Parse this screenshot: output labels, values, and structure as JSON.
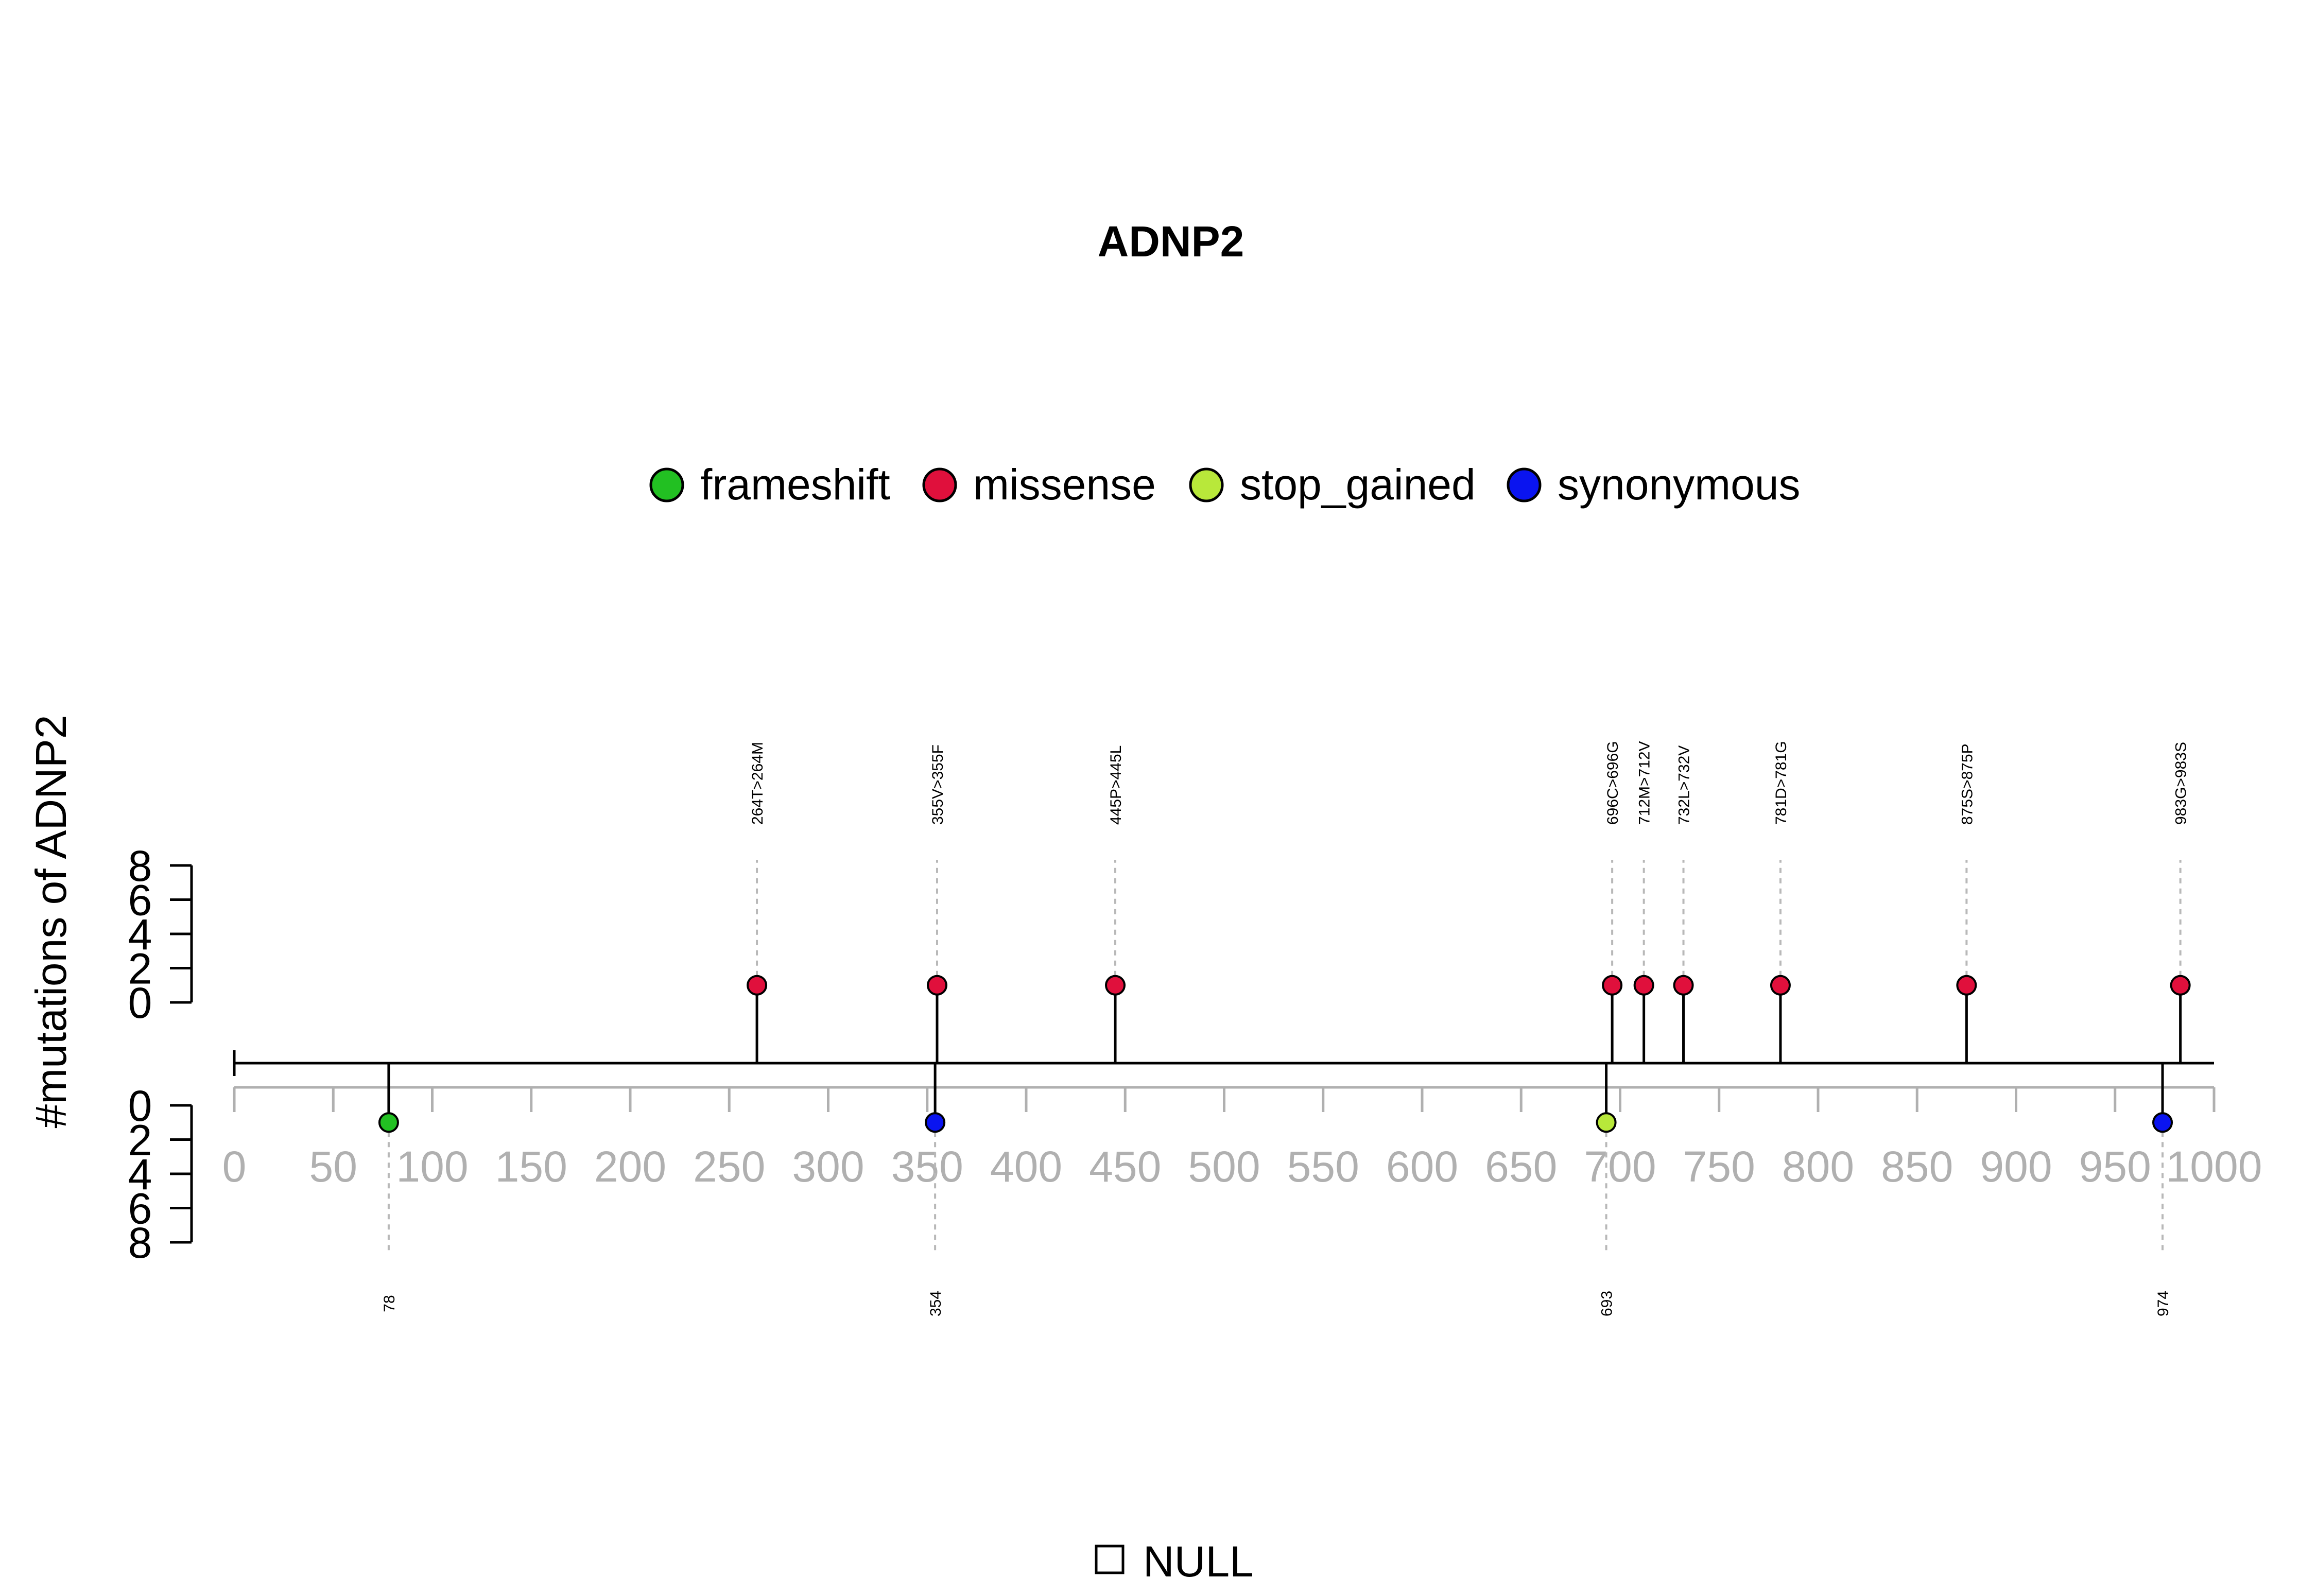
{
  "chart_data": {
    "type": "lollipop",
    "title": "ADNP2",
    "ylabel": "#mutations of ADNP2",
    "xlim": [
      0,
      1000
    ],
    "x_ticks": [
      0,
      50,
      100,
      150,
      200,
      250,
      300,
      350,
      400,
      450,
      500,
      550,
      600,
      650,
      700,
      750,
      800,
      850,
      900,
      950,
      1000
    ],
    "y_ticks": [
      0,
      2,
      4,
      6,
      8
    ],
    "legend": [
      {
        "name": "frameshift",
        "color": "#22c022"
      },
      {
        "name": "missense",
        "color": "#e0103c"
      },
      {
        "name": "stop_gained",
        "color": "#b8e83a"
      },
      {
        "name": "synonymous",
        "color": "#0a14f0"
      }
    ],
    "upper_mutations": [
      {
        "pos": 264,
        "label": "264T>264M",
        "type": "missense",
        "count": 1
      },
      {
        "pos": 355,
        "label": "355V>355F",
        "type": "missense",
        "count": 1
      },
      {
        "pos": 445,
        "label": "445P>445L",
        "type": "missense",
        "count": 1
      },
      {
        "pos": 696,
        "label": "696C>696G",
        "type": "missense",
        "count": 1
      },
      {
        "pos": 712,
        "label": "712M>712V",
        "type": "missense",
        "count": 1
      },
      {
        "pos": 732,
        "label": "732L>732V",
        "type": "missense",
        "count": 1
      },
      {
        "pos": 781,
        "label": "781D>781G",
        "type": "missense",
        "count": 1
      },
      {
        "pos": 875,
        "label": "875S>875P",
        "type": "missense",
        "count": 1
      },
      {
        "pos": 983,
        "label": "983G>983S",
        "type": "missense",
        "count": 1
      }
    ],
    "lower_mutations": [
      {
        "pos": 78,
        "label": "78",
        "type": "frameshift",
        "count": 1
      },
      {
        "pos": 354,
        "label": "354",
        "type": "synonymous",
        "count": 1
      },
      {
        "pos": 693,
        "label": "693",
        "type": "stop_gained",
        "count": 1
      },
      {
        "pos": 974,
        "label": "974",
        "type": "synonymous",
        "count": 1
      }
    ],
    "bottom_legend": "NULL"
  }
}
